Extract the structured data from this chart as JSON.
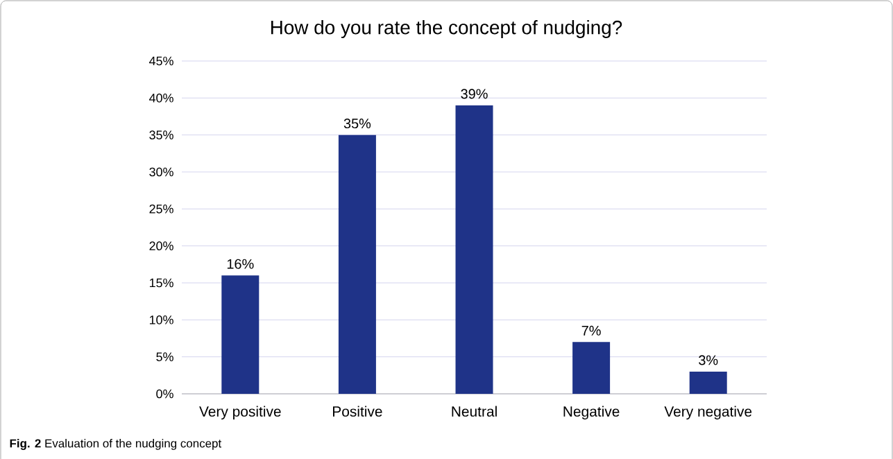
{
  "chart_data": {
    "type": "bar",
    "title": "How do you rate the concept of nudging?",
    "categories": [
      "Very positive",
      "Positive",
      "Neutral",
      "Negative",
      "Very negative"
    ],
    "values": [
      16,
      35,
      39,
      7,
      3
    ],
    "value_labels": [
      "16%",
      "35%",
      "39%",
      "7%",
      "3%"
    ],
    "color": "#1f3388",
    "ylim": [
      0,
      45
    ],
    "yticks": [
      {
        "value": 0,
        "label": "0%"
      },
      {
        "value": 5,
        "label": "5%"
      },
      {
        "value": 10,
        "label": "10%"
      },
      {
        "value": 15,
        "label": "15%"
      },
      {
        "value": 20,
        "label": "20%"
      },
      {
        "value": 25,
        "label": "25%"
      },
      {
        "value": 30,
        "label": "30%"
      },
      {
        "value": 35,
        "label": "35%"
      },
      {
        "value": 40,
        "label": "40%"
      },
      {
        "value": 45,
        "label": "45%"
      }
    ],
    "grid": "y",
    "annotations": [
      "**Fig. 2** Evaluation of the nudging concept"
    ]
  }
}
